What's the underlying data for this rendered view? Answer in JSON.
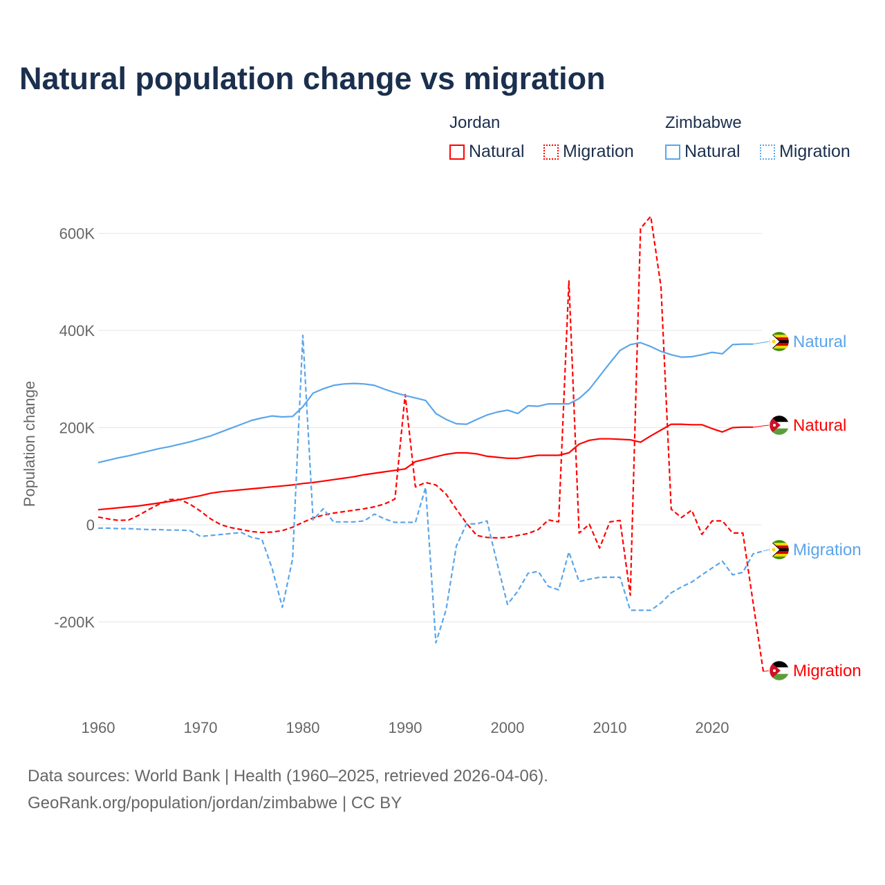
{
  "chart_data": {
    "type": "line",
    "title": "Natural population change vs migration",
    "xlabel": "",
    "ylabel": "Population change",
    "xlim": [
      1960,
      2025
    ],
    "ylim": [
      -300000,
      650000
    ],
    "x_ticks": [
      "1960",
      "1970",
      "1980",
      "1990",
      "2000",
      "2010",
      "2020"
    ],
    "y_ticks": [
      {
        "value": -200000,
        "label": "-200K"
      },
      {
        "value": 0,
        "label": "0"
      },
      {
        "value": 200000,
        "label": "200K"
      },
      {
        "value": 400000,
        "label": "400K"
      },
      {
        "value": 600000,
        "label": "600K"
      }
    ],
    "grid": true,
    "legend": {
      "placement": "top-right",
      "groups": [
        {
          "name": "Jordan",
          "items": [
            "Natural",
            "Migration"
          ]
        },
        {
          "name": "Zimbabwe",
          "items": [
            "Natural",
            "Migration"
          ]
        }
      ]
    },
    "x_start": 1960,
    "series": [
      {
        "name": "Jordan Natural",
        "country": "Jordan",
        "kind": "Natural",
        "color": "#ff0000",
        "dashed": false,
        "end_label": "Natural",
        "values": [
          31,
          33,
          35,
          37,
          39,
          42,
          45,
          48,
          52,
          56,
          60,
          65,
          68,
          70,
          72,
          74,
          76,
          78,
          80,
          82,
          85,
          87,
          90,
          93,
          96,
          99,
          103,
          106,
          109,
          112,
          115,
          130,
          135,
          140,
          145,
          148,
          148,
          146,
          141,
          139,
          137,
          137,
          140,
          143,
          143,
          143,
          148,
          166,
          174,
          177,
          177,
          176,
          175,
          170,
          183,
          195,
          207,
          207,
          206,
          206,
          198,
          191,
          200,
          201,
          201
        ]
      },
      {
        "name": "Jordan Migration",
        "country": "Jordan",
        "kind": "Migration",
        "color": "#ff0000",
        "dashed": true,
        "end_label": "Migration",
        "values": [
          16,
          12,
          9,
          10,
          20,
          32,
          43,
          52,
          52,
          42,
          28,
          12,
          0,
          -6,
          -10,
          -14,
          -16,
          -15,
          -12,
          -5,
          5,
          14,
          20,
          24,
          27,
          30,
          33,
          37,
          43,
          53,
          268,
          78,
          87,
          82,
          63,
          32,
          3,
          -22,
          -26,
          -27,
          -26,
          -22,
          -18,
          -10,
          10,
          6,
          502,
          -17,
          1,
          -48,
          6,
          9,
          -145,
          610,
          635,
          490,
          32,
          15,
          30,
          -20,
          8,
          8,
          -17,
          -17,
          -160,
          -302
        ]
      },
      {
        "name": "Zimbabwe Natural",
        "country": "Zimbabwe",
        "kind": "Natural",
        "color": "#5aa5ea",
        "dashed": false,
        "end_label": "Natural",
        "values": [
          128,
          133,
          138,
          142,
          147,
          152,
          157,
          161,
          166,
          171,
          177,
          183,
          191,
          199,
          207,
          215,
          220,
          224,
          222,
          223,
          243,
          271,
          280,
          287,
          290,
          291,
          290,
          287,
          279,
          272,
          266,
          261,
          256,
          229,
          217,
          208,
          207,
          217,
          226,
          232,
          236,
          229,
          245,
          244,
          249,
          249,
          249,
          260,
          279,
          306,
          333,
          359,
          371,
          375,
          367,
          357,
          350,
          345,
          346,
          350,
          355,
          352,
          371,
          372,
          372
        ]
      },
      {
        "name": "Zimbabwe Migration",
        "country": "Zimbabwe",
        "kind": "Migration",
        "color": "#5aa5ea",
        "dashed": true,
        "end_label": "Migration",
        "values": [
          -7,
          -7,
          -8,
          -8,
          -9,
          -10,
          -10,
          -11,
          -11,
          -12,
          -24,
          -22,
          -20,
          -18,
          -16,
          -26,
          -30,
          -90,
          -170,
          -70,
          390,
          10,
          33,
          6,
          6,
          6,
          8,
          22,
          12,
          5,
          5,
          5,
          77,
          -243,
          -175,
          -44,
          2,
          2,
          8,
          -80,
          -164,
          -137,
          -100,
          -96,
          -127,
          -134,
          -56,
          -117,
          -112,
          -108,
          -108,
          -108,
          -176,
          -176,
          -176,
          -161,
          -140,
          -128,
          -118,
          -103,
          -89,
          -75,
          -103,
          -98,
          -60,
          -54
        ]
      }
    ],
    "value_unit": "thousands"
  },
  "legend_labels": {
    "jordan": "Jordan",
    "zimbabwe": "Zimbabwe",
    "natural": "Natural",
    "migration": "Migration"
  },
  "footer": {
    "line1": "Data sources: World Bank | Health (1960–2025, retrieved 2026-04-06).",
    "line2": "GeoRank.org/population/jordan/zimbabwe | CC BY"
  }
}
